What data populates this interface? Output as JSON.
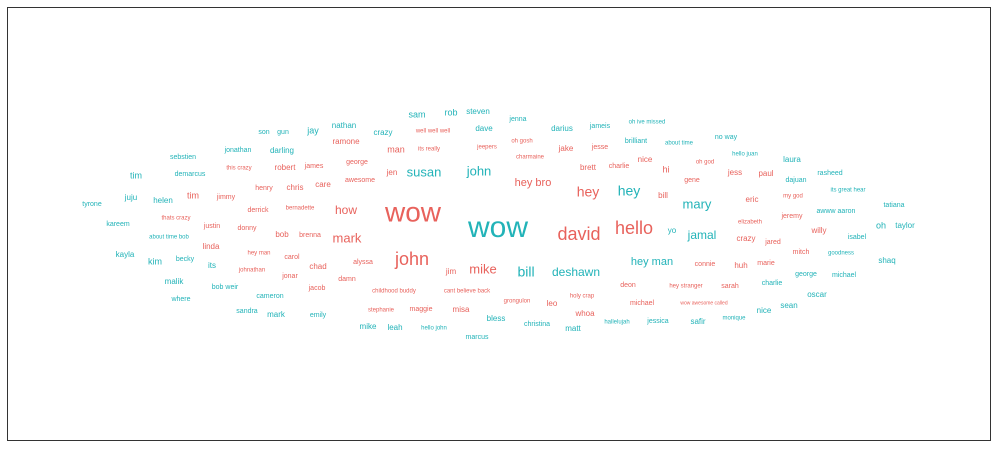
{
  "chart_data": {
    "type": "wordcloud",
    "colors": {
      "a": "#e8625c",
      "b": "#22b3b8"
    },
    "words": [
      {
        "text": "wow",
        "size": 28,
        "color": "a"
      },
      {
        "text": "wow",
        "size": 30,
        "color": "b"
      },
      {
        "text": "david",
        "size": 18,
        "color": "a"
      },
      {
        "text": "hello",
        "size": 18,
        "color": "a"
      },
      {
        "text": "john",
        "size": 18,
        "color": "a"
      },
      {
        "text": "john",
        "size": 13,
        "color": "b"
      },
      {
        "text": "mark",
        "size": 13,
        "color": "a"
      },
      {
        "text": "susan",
        "size": 13,
        "color": "b"
      },
      {
        "text": "hey",
        "size": 14,
        "color": "a"
      },
      {
        "text": "hey",
        "size": 14,
        "color": "b"
      },
      {
        "text": "mary",
        "size": 13,
        "color": "b"
      },
      {
        "text": "jamal",
        "size": 12,
        "color": "b"
      },
      {
        "text": "bill",
        "size": 14,
        "color": "b"
      },
      {
        "text": "deshawn",
        "size": 12,
        "color": "b"
      },
      {
        "text": "mike",
        "size": 13,
        "color": "a"
      },
      {
        "text": "how",
        "size": 12,
        "color": "a"
      },
      {
        "text": "hey bro",
        "size": 11,
        "color": "a"
      },
      {
        "text": "hey man",
        "size": 11,
        "color": "b"
      },
      {
        "text": "sam",
        "size": 9,
        "color": "b"
      },
      {
        "text": "rob",
        "size": 9,
        "color": "b"
      },
      {
        "text": "steven",
        "size": 8,
        "color": "b"
      },
      {
        "text": "jenna",
        "size": 7,
        "color": "b"
      },
      {
        "text": "nathan",
        "size": 8,
        "color": "b"
      },
      {
        "text": "crazy",
        "size": 8,
        "color": "b"
      },
      {
        "text": "well well well",
        "size": 6,
        "color": "a"
      },
      {
        "text": "dave",
        "size": 8,
        "color": "b"
      },
      {
        "text": "darius",
        "size": 8,
        "color": "b"
      },
      {
        "text": "jameis",
        "size": 7,
        "color": "b"
      },
      {
        "text": "oh  ive missed",
        "size": 6,
        "color": "b"
      },
      {
        "text": "son",
        "size": 7,
        "color": "b"
      },
      {
        "text": "gun",
        "size": 7,
        "color": "b"
      },
      {
        "text": "jay",
        "size": 9,
        "color": "b"
      },
      {
        "text": "ramone",
        "size": 8,
        "color": "a"
      },
      {
        "text": "man",
        "size": 9,
        "color": "a"
      },
      {
        "text": "its really",
        "size": 6,
        "color": "a"
      },
      {
        "text": "jeepers",
        "size": 6,
        "color": "a"
      },
      {
        "text": "oh  gosh",
        "size": 6,
        "color": "a"
      },
      {
        "text": "jake",
        "size": 8,
        "color": "a"
      },
      {
        "text": "jesse",
        "size": 7,
        "color": "a"
      },
      {
        "text": "brilliant",
        "size": 7,
        "color": "b"
      },
      {
        "text": "about time",
        "size": 6,
        "color": "b"
      },
      {
        "text": "no way",
        "size": 7,
        "color": "b"
      },
      {
        "text": "jonathan",
        "size": 7,
        "color": "b"
      },
      {
        "text": "darling",
        "size": 8,
        "color": "b"
      },
      {
        "text": "sebstien",
        "size": 7,
        "color": "b"
      },
      {
        "text": "george",
        "size": 7,
        "color": "a"
      },
      {
        "text": "charmaine",
        "size": 6,
        "color": "a"
      },
      {
        "text": "nice",
        "size": 8,
        "color": "a"
      },
      {
        "text": "oh  god",
        "size": 6,
        "color": "a"
      },
      {
        "text": "hello juan",
        "size": 6,
        "color": "b"
      },
      {
        "text": "laura",
        "size": 8,
        "color": "b"
      },
      {
        "text": "this  crazy",
        "size": 6,
        "color": "a"
      },
      {
        "text": "robert",
        "size": 8,
        "color": "a"
      },
      {
        "text": "james",
        "size": 7,
        "color": "a"
      },
      {
        "text": "brett",
        "size": 8,
        "color": "a"
      },
      {
        "text": "charlie",
        "size": 7,
        "color": "a"
      },
      {
        "text": "hi",
        "size": 9,
        "color": "a"
      },
      {
        "text": "rasheed",
        "size": 7,
        "color": "b"
      },
      {
        "text": "tim",
        "size": 9,
        "color": "b"
      },
      {
        "text": "demarcus",
        "size": 7,
        "color": "b"
      },
      {
        "text": "jen",
        "size": 8,
        "color": "a"
      },
      {
        "text": "awesome",
        "size": 7,
        "color": "a"
      },
      {
        "text": "gene",
        "size": 7,
        "color": "a"
      },
      {
        "text": "jess",
        "size": 8,
        "color": "a"
      },
      {
        "text": "paul",
        "size": 8,
        "color": "a"
      },
      {
        "text": "dajuan",
        "size": 7,
        "color": "b"
      },
      {
        "text": "henry",
        "size": 7,
        "color": "a"
      },
      {
        "text": "chris",
        "size": 8,
        "color": "a"
      },
      {
        "text": "care",
        "size": 8,
        "color": "a"
      },
      {
        "text": "its great  hear",
        "size": 6,
        "color": "b"
      },
      {
        "text": "juju",
        "size": 8,
        "color": "b"
      },
      {
        "text": "helen",
        "size": 8,
        "color": "b"
      },
      {
        "text": "tim",
        "size": 9,
        "color": "a"
      },
      {
        "text": "jimmy",
        "size": 7,
        "color": "a"
      },
      {
        "text": "bill",
        "size": 8,
        "color": "a"
      },
      {
        "text": "my god",
        "size": 6,
        "color": "a"
      },
      {
        "text": "tyrone",
        "size": 7,
        "color": "b"
      },
      {
        "text": "derrick",
        "size": 7,
        "color": "a"
      },
      {
        "text": "bernadette",
        "size": 6,
        "color": "a"
      },
      {
        "text": "eric",
        "size": 8,
        "color": "a"
      },
      {
        "text": "tatiana",
        "size": 7,
        "color": "b"
      },
      {
        "text": "thats crazy",
        "size": 6,
        "color": "a"
      },
      {
        "text": "jeremy",
        "size": 7,
        "color": "a"
      },
      {
        "text": "awww  aaron",
        "size": 7,
        "color": "b"
      },
      {
        "text": "kareem",
        "size": 7,
        "color": "b"
      },
      {
        "text": "justin",
        "size": 7,
        "color": "a"
      },
      {
        "text": "donny",
        "size": 7,
        "color": "a"
      },
      {
        "text": "elizabeth",
        "size": 6,
        "color": "a"
      },
      {
        "text": "yo",
        "size": 8,
        "color": "b"
      },
      {
        "text": "oh",
        "size": 9,
        "color": "b"
      },
      {
        "text": "taylor",
        "size": 8,
        "color": "b"
      },
      {
        "text": "about time bob",
        "size": 6,
        "color": "b"
      },
      {
        "text": "bob",
        "size": 8,
        "color": "a"
      },
      {
        "text": "brenna",
        "size": 7,
        "color": "a"
      },
      {
        "text": "crazy",
        "size": 8,
        "color": "a"
      },
      {
        "text": "jared",
        "size": 7,
        "color": "a"
      },
      {
        "text": "willy",
        "size": 8,
        "color": "a"
      },
      {
        "text": "isabel",
        "size": 7,
        "color": "b"
      },
      {
        "text": "linda",
        "size": 8,
        "color": "a"
      },
      {
        "text": "hey man",
        "size": 6,
        "color": "a"
      },
      {
        "text": "carol",
        "size": 7,
        "color": "a"
      },
      {
        "text": "mitch",
        "size": 7,
        "color": "a"
      },
      {
        "text": "goodness",
        "size": 6,
        "color": "b"
      },
      {
        "text": "kayla",
        "size": 8,
        "color": "b"
      },
      {
        "text": "kim",
        "size": 9,
        "color": "b"
      },
      {
        "text": "becky",
        "size": 7,
        "color": "b"
      },
      {
        "text": "its",
        "size": 8,
        "color": "b"
      },
      {
        "text": "chad",
        "size": 8,
        "color": "a"
      },
      {
        "text": "alyssa",
        "size": 7,
        "color": "a"
      },
      {
        "text": "jim",
        "size": 8,
        "color": "a"
      },
      {
        "text": "connie",
        "size": 7,
        "color": "a"
      },
      {
        "text": "huh",
        "size": 8,
        "color": "a"
      },
      {
        "text": "marie",
        "size": 7,
        "color": "a"
      },
      {
        "text": "shaq",
        "size": 8,
        "color": "b"
      },
      {
        "text": "johnathan",
        "size": 6,
        "color": "a"
      },
      {
        "text": "jonar",
        "size": 7,
        "color": "a"
      },
      {
        "text": "damn",
        "size": 7,
        "color": "a"
      },
      {
        "text": "george",
        "size": 7,
        "color": "b"
      },
      {
        "text": "michael",
        "size": 7,
        "color": "b"
      },
      {
        "text": "malik",
        "size": 8,
        "color": "b"
      },
      {
        "text": "bob weir",
        "size": 7,
        "color": "b"
      },
      {
        "text": "jacob",
        "size": 7,
        "color": "a"
      },
      {
        "text": "deon",
        "size": 7,
        "color": "a"
      },
      {
        "text": "hey stranger",
        "size": 6,
        "color": "a"
      },
      {
        "text": "sarah",
        "size": 7,
        "color": "a"
      },
      {
        "text": "charlie",
        "size": 7,
        "color": "b"
      },
      {
        "text": "where",
        "size": 7,
        "color": "b"
      },
      {
        "text": "cameron",
        "size": 7,
        "color": "b"
      },
      {
        "text": "childhood buddy",
        "size": 6,
        "color": "a"
      },
      {
        "text": "cant believe  back",
        "size": 6,
        "color": "a"
      },
      {
        "text": "holy crap",
        "size": 6,
        "color": "a"
      },
      {
        "text": "michael",
        "size": 7,
        "color": "a"
      },
      {
        "text": "oscar",
        "size": 8,
        "color": "b"
      },
      {
        "text": "grongulon",
        "size": 6,
        "color": "a"
      },
      {
        "text": "leo",
        "size": 8,
        "color": "a"
      },
      {
        "text": "wow  awesome  called",
        "size": 5,
        "color": "a"
      },
      {
        "text": "sean",
        "size": 8,
        "color": "b"
      },
      {
        "text": "sandra",
        "size": 7,
        "color": "b"
      },
      {
        "text": "mark",
        "size": 8,
        "color": "b"
      },
      {
        "text": "emily",
        "size": 7,
        "color": "b"
      },
      {
        "text": "stephanie",
        "size": 6,
        "color": "a"
      },
      {
        "text": "maggie",
        "size": 7,
        "color": "a"
      },
      {
        "text": "misa",
        "size": 8,
        "color": "a"
      },
      {
        "text": "whoa",
        "size": 8,
        "color": "a"
      },
      {
        "text": "nice",
        "size": 8,
        "color": "b"
      },
      {
        "text": "bless",
        "size": 8,
        "color": "b"
      },
      {
        "text": "hallelujah",
        "size": 6,
        "color": "b"
      },
      {
        "text": "jessica",
        "size": 7,
        "color": "b"
      },
      {
        "text": "safir",
        "size": 8,
        "color": "b"
      },
      {
        "text": "monique",
        "size": 6,
        "color": "b"
      },
      {
        "text": "mike",
        "size": 8,
        "color": "b"
      },
      {
        "text": "leah",
        "size": 8,
        "color": "b"
      },
      {
        "text": "hello john",
        "size": 6,
        "color": "b"
      },
      {
        "text": "christina",
        "size": 7,
        "color": "b"
      },
      {
        "text": "matt",
        "size": 8,
        "color": "b"
      },
      {
        "text": "marcus",
        "size": 7,
        "color": "b"
      }
    ]
  }
}
